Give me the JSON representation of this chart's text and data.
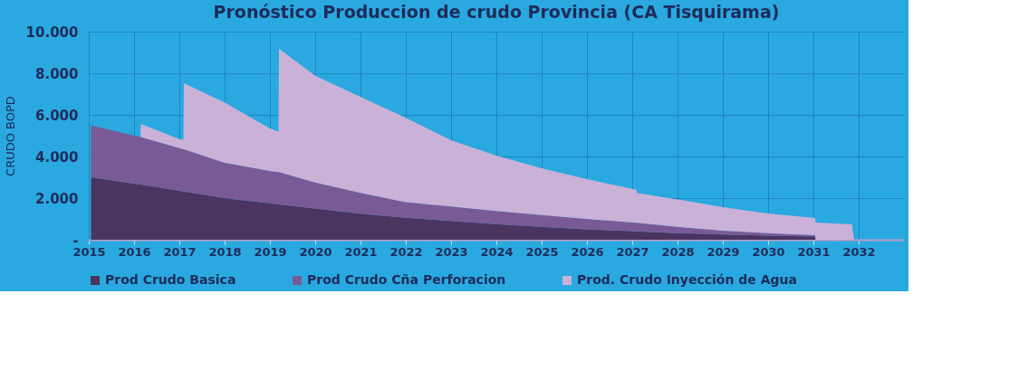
{
  "chart_data": {
    "type": "area",
    "title": "Pronóstico Produccion de crudo Provincia (CA Tisquirama)",
    "ylabel": "CRUDO BOPD",
    "stacked": true,
    "legend": "bottom",
    "grid": true,
    "x": [
      2015.05,
      2016,
      2016.14,
      2016.15,
      2017,
      2017.09,
      2017.1,
      2018,
      2019,
      2019.19,
      2019.2,
      2020,
      2021,
      2022,
      2023,
      2024,
      2025,
      2026,
      2027.09,
      2027.1,
      2028,
      2029,
      2030,
      2031.04,
      2031.05,
      2031.85,
      2031.9
    ],
    "series": [
      {
        "name": "Prod Crudo Basica",
        "color": "#4a3560",
        "values": [
          3000,
          2700,
          2650,
          2650,
          2350,
          2320,
          2320,
          2000,
          1750,
          1700,
          1700,
          1500,
          1250,
          1050,
          900,
          750,
          620,
          500,
          400,
          400,
          320,
          250,
          200,
          150,
          0,
          0,
          0
        ]
      },
      {
        "name": "Prod Crudo Cña Perforacion",
        "color": "#7a5a96",
        "values": [
          2500,
          2300,
          2300,
          2290,
          2050,
          2030,
          2030,
          1700,
          1550,
          1550,
          1550,
          1250,
          1000,
          750,
          700,
          630,
          570,
          500,
          420,
          420,
          300,
          180,
          120,
          70,
          0,
          0,
          0
        ]
      },
      {
        "name": "Prod. Crudo Inyección de Agua",
        "color": "#c9b1d8",
        "values": [
          0,
          0,
          0,
          620,
          440,
          450,
          3170,
          2900,
          2050,
          1950,
          5940,
          5130,
          4620,
          4060,
          3180,
          2660,
          2240,
          1910,
          1580,
          1430,
          1320,
          1140,
          940,
          820,
          830,
          740,
          0
        ]
      }
    ],
    "xlim": [
      2015,
      2033
    ],
    "xticks": [
      2015,
      2016,
      2017,
      2018,
      2019,
      2020,
      2021,
      2022,
      2023,
      2024,
      2025,
      2026,
      2027,
      2028,
      2029,
      2030,
      2031,
      2032
    ],
    "ylim": [
      0,
      10000
    ],
    "yticks": [
      {
        "value": 0,
        "label": "-"
      },
      {
        "value": 2000,
        "label": "2.000"
      },
      {
        "value": 4000,
        "label": "4.000"
      },
      {
        "value": 6000,
        "label": "6.000"
      },
      {
        "value": 8000,
        "label": "8.000"
      },
      {
        "value": 10000,
        "label": "10.000"
      }
    ]
  }
}
